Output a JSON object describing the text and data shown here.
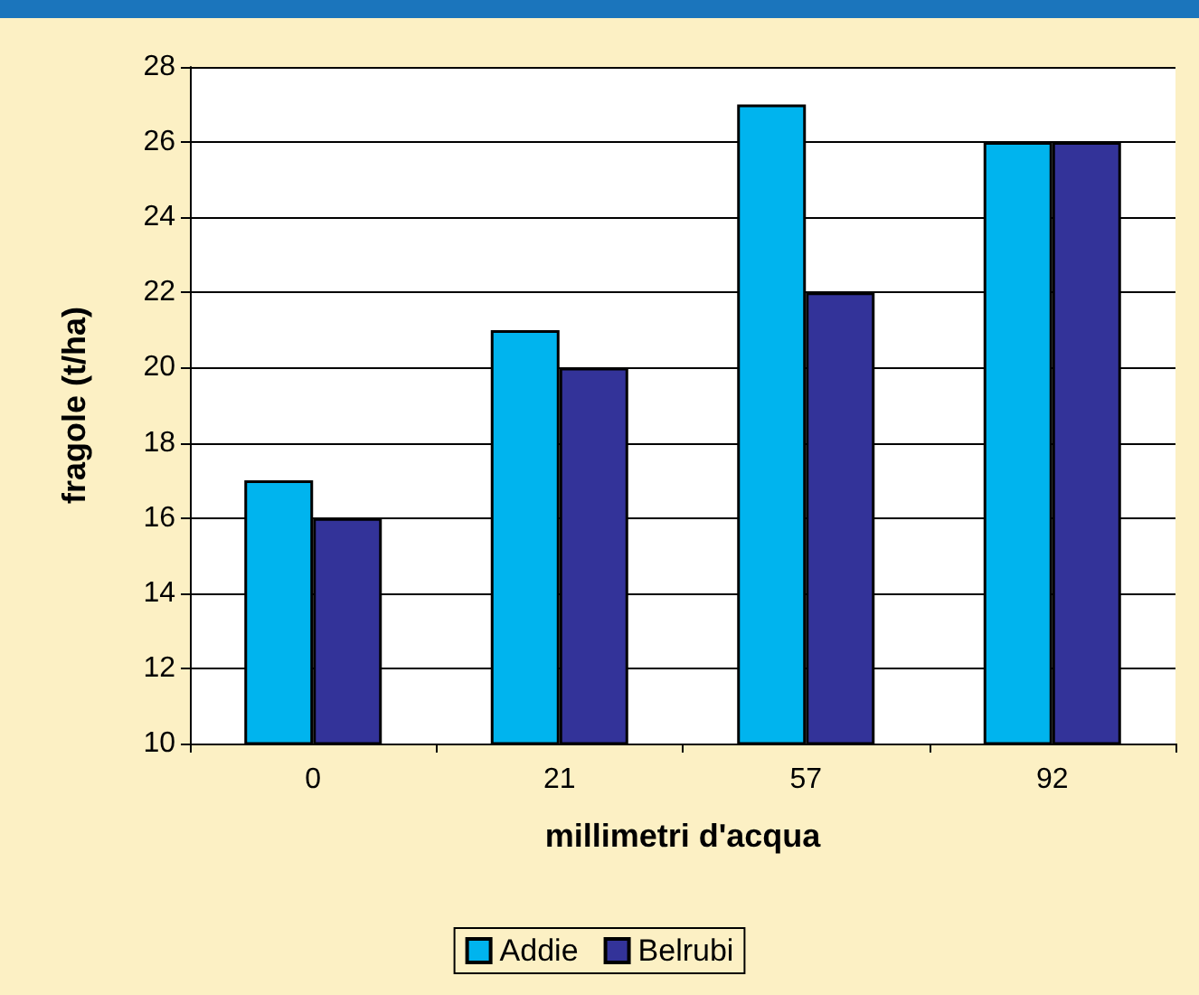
{
  "chart_data": {
    "type": "bar",
    "xlabel": "millimetri d'acqua",
    "ylabel": "fragole (t/ha)",
    "categories": [
      "0",
      "21",
      "57",
      "92"
    ],
    "series": [
      {
        "name": "Addie",
        "color": "#00b4ee",
        "values": [
          17,
          21,
          27,
          26
        ]
      },
      {
        "name": "Belrubi",
        "color": "#333399",
        "values": [
          16,
          20,
          22,
          26
        ]
      }
    ],
    "ylim": [
      10,
      28
    ],
    "yticks": [
      10,
      12,
      14,
      16,
      18,
      20,
      22,
      24,
      26,
      28
    ],
    "grid": "y",
    "legend": "bottom"
  }
}
